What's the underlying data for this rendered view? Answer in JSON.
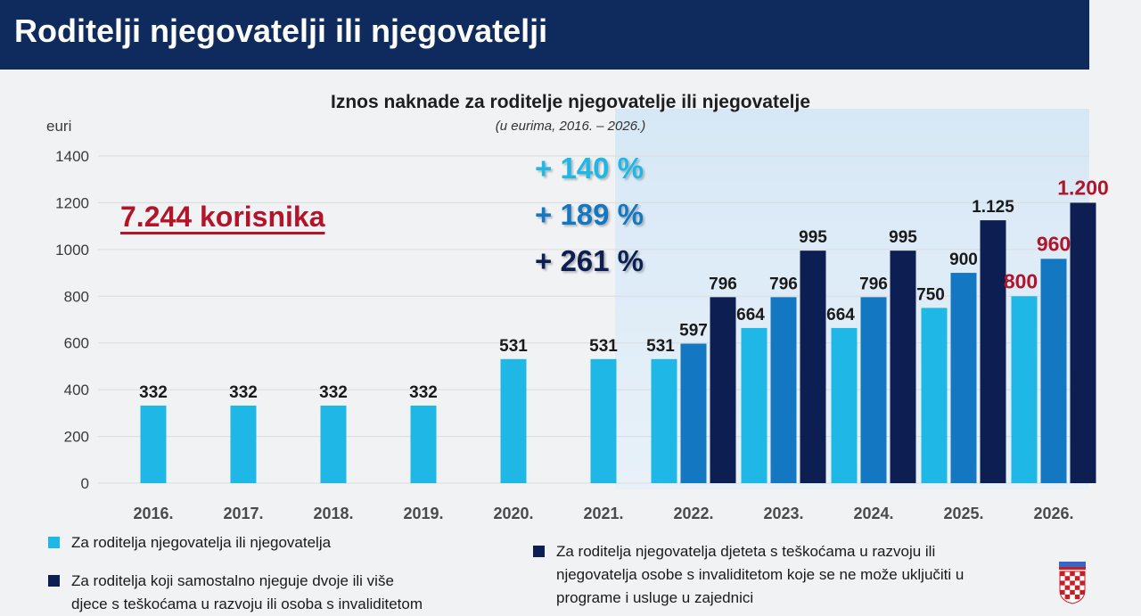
{
  "header": {
    "title": "Roditelji njegovatelji ili njegovatelji"
  },
  "annotations": {
    "users": "7.244 korisnika",
    "increase_1": "+ 140 %",
    "increase_2": "+ 189 %",
    "increase_3": "+ 261 %"
  },
  "colors": {
    "series_1": "#1fb8e6",
    "series_2": "#1477c2",
    "series_3": "#0d1f52",
    "highlight_value": "#b2142a",
    "header_bg": "#0f2a5c"
  },
  "chart_data": {
    "type": "bar",
    "title": "Iznos naknade za roditelje njegovatelje ili njegovatelje",
    "subtitle": "(u eurima, 2016. – 2026.)",
    "ylabel": "euri",
    "xlabel": "",
    "ylim": [
      0,
      1400
    ],
    "yticks": [
      0,
      200,
      400,
      600,
      800,
      1000,
      1200,
      1400
    ],
    "grid": true,
    "categories": [
      "2016.",
      "2017.",
      "2018.",
      "2019.",
      "2020.",
      "2021.",
      "2022.",
      "2023.",
      "2024.",
      "2025.",
      "2026."
    ],
    "series": [
      {
        "name": "Za roditelja njegovatelja ili njegovatelja",
        "values": [
          332,
          332,
          332,
          332,
          531,
          531,
          531,
          664,
          664,
          750,
          800
        ],
        "labels": [
          "332",
          "332",
          "332",
          "332",
          "531",
          "531",
          "531",
          "664",
          "664",
          "750",
          "800"
        ]
      },
      {
        "name": "Za roditelja njegovatelja djeteta s teškoćama u razvoju ili njegovatelja osobe s invaliditetom koje se ne može uključiti u programe i usluge u zajednici",
        "values": [
          null,
          null,
          null,
          null,
          null,
          null,
          597,
          796,
          796,
          900,
          960
        ],
        "labels": [
          "",
          "",
          "",
          "",
          "",
          "",
          "597",
          "796",
          "796",
          "900",
          "960"
        ]
      },
      {
        "name": "Za roditelja koji samostalno njeguje dvoje ili više djece s teškoćama u razvoju ili osoba s invaliditetom",
        "values": [
          null,
          null,
          null,
          null,
          null,
          null,
          796,
          995,
          995,
          1125,
          1200
        ],
        "labels": [
          "",
          "",
          "",
          "",
          "",
          "",
          "796",
          "995",
          "995",
          "1.125",
          "1.200"
        ]
      }
    ],
    "highlighted_labels": [
      "800",
      "960",
      "1.200"
    ]
  },
  "legend": {
    "item1": "Za roditelja njegovatelja ili njegovatelja",
    "item2_line1": "Za roditelja koji samostalno njeguje dvoje ili više",
    "item2_line2": "djece s teškoćama u razvoju ili osoba s invaliditetom",
    "item3_line1": "Za roditelja njegovatelja djeteta s teškoćama u razvoju ili",
    "item3_line2": "njegovatelja osobe s invaliditetom koje se ne može uključiti u",
    "item3_line3": "programe i usluge u zajednici"
  }
}
